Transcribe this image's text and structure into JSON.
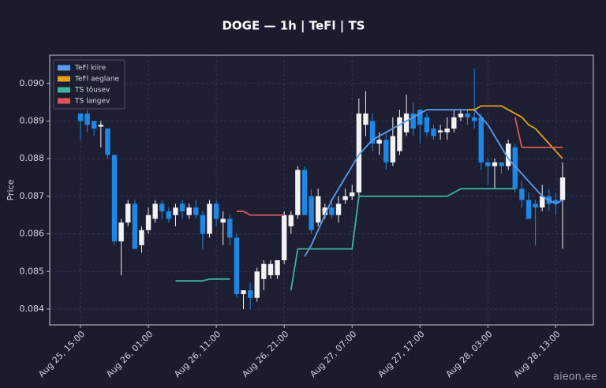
{
  "chart_data": {
    "type": "candlestick",
    "title": "DOGE — 1h  |  TeFl  |  TS",
    "y_label": "Price",
    "watermark": "aieon.ee",
    "x": [
      "Aug 25, 15:00",
      "Aug 25, 16:00",
      "Aug 25, 17:00",
      "Aug 25, 18:00",
      "Aug 25, 19:00",
      "Aug 25, 20:00",
      "Aug 25, 21:00",
      "Aug 25, 22:00",
      "Aug 25, 23:00",
      "Aug 26, 00:00",
      "Aug 26, 01:00",
      "Aug 26, 02:00",
      "Aug 26, 03:00",
      "Aug 26, 04:00",
      "Aug 26, 05:00",
      "Aug 26, 06:00",
      "Aug 26, 07:00",
      "Aug 26, 08:00",
      "Aug 26, 09:00",
      "Aug 26, 10:00",
      "Aug 26, 11:00",
      "Aug 26, 12:00",
      "Aug 26, 13:00",
      "Aug 26, 14:00",
      "Aug 26, 15:00",
      "Aug 26, 16:00",
      "Aug 26, 17:00",
      "Aug 26, 18:00",
      "Aug 26, 19:00",
      "Aug 26, 20:00",
      "Aug 26, 21:00",
      "Aug 26, 22:00",
      "Aug 26, 23:00",
      "Aug 27, 00:00",
      "Aug 27, 01:00",
      "Aug 27, 02:00",
      "Aug 27, 03:00",
      "Aug 27, 04:00",
      "Aug 27, 05:00",
      "Aug 27, 06:00",
      "Aug 27, 07:00",
      "Aug 27, 08:00",
      "Aug 27, 09:00",
      "Aug 27, 10:00",
      "Aug 27, 11:00",
      "Aug 27, 12:00",
      "Aug 27, 13:00",
      "Aug 27, 14:00",
      "Aug 27, 15:00",
      "Aug 27, 16:00",
      "Aug 27, 17:00",
      "Aug 27, 18:00",
      "Aug 27, 19:00",
      "Aug 27, 20:00",
      "Aug 27, 21:00",
      "Aug 27, 22:00",
      "Aug 27, 23:00",
      "Aug 28, 00:00",
      "Aug 28, 01:00",
      "Aug 28, 02:00",
      "Aug 28, 03:00",
      "Aug 28, 04:00",
      "Aug 28, 05:00",
      "Aug 28, 06:00",
      "Aug 28, 07:00",
      "Aug 28, 08:00",
      "Aug 28, 09:00",
      "Aug 28, 10:00",
      "Aug 28, 11:00",
      "Aug 28, 12:00",
      "Aug 28, 13:00",
      "Aug 28, 14:00"
    ],
    "open": [
      0.0892,
      0.0892,
      0.089,
      0.08885,
      0.0888,
      0.0881,
      0.0858,
      0.0863,
      0.0868,
      0.0857,
      0.0861,
      0.0864,
      0.0868,
      0.0866,
      0.0865,
      0.0868,
      0.0865,
      0.0867,
      0.0865,
      0.086,
      0.0868,
      0.0863,
      0.0864,
      0.0859,
      0.0844,
      0.0845,
      0.0843,
      0.0848,
      0.0849,
      0.0849,
      0.0853,
      0.0862,
      0.0865,
      0.0877,
      0.087,
      0.0863,
      0.0865,
      0.0867,
      0.0865,
      0.0869,
      0.087,
      0.0871,
      0.0889,
      0.089,
      0.0884,
      0.0885,
      0.0879,
      0.0882,
      0.0887,
      0.0892,
      0.0893,
      0.0891,
      0.0888,
      0.0887,
      0.0887,
      0.0888,
      0.0891,
      0.0892,
      0.0891,
      0.0891,
      0.0879,
      0.0878,
      0.0879,
      0.0878,
      0.0883,
      0.0872,
      0.0869,
      0.0868,
      0.0867,
      0.087,
      0.0869,
      0.0869
    ],
    "high": [
      0.0892,
      0.0893,
      0.089,
      0.089,
      0.0888,
      0.0881,
      0.0864,
      0.0869,
      0.0869,
      0.0862,
      0.0867,
      0.0869,
      0.0869,
      0.0867,
      0.0868,
      0.0869,
      0.0868,
      0.0869,
      0.0866,
      0.0869,
      0.0869,
      0.0866,
      0.0865,
      0.086,
      0.0845,
      0.0847,
      0.0851,
      0.0853,
      0.0853,
      0.0853,
      0.0866,
      0.0866,
      0.0878,
      0.0878,
      0.0872,
      0.0872,
      0.0868,
      0.0869,
      0.087,
      0.0872,
      0.0873,
      0.0896,
      0.0898,
      0.0892,
      0.0887,
      0.0887,
      0.0891,
      0.0893,
      0.0897,
      0.0895,
      0.0893,
      0.0892,
      0.0889,
      0.0889,
      0.0891,
      0.0893,
      0.0893,
      0.0893,
      0.0904,
      0.0892,
      0.088,
      0.088,
      0.0879,
      0.0885,
      0.0884,
      0.0874,
      0.0871,
      0.0869,
      0.0873,
      0.0872,
      0.0871,
      0.0879
    ],
    "low": [
      0.0885,
      0.0887,
      0.0886,
      0.0883,
      0.088,
      0.0857,
      0.0849,
      0.0862,
      0.0856,
      0.0855,
      0.086,
      0.0863,
      0.0864,
      0.0863,
      0.0862,
      0.0864,
      0.0864,
      0.0864,
      0.0856,
      0.0859,
      0.0862,
      0.0857,
      0.0857,
      0.0843,
      0.084,
      0.084,
      0.0842,
      0.0845,
      0.0848,
      0.0848,
      0.0852,
      0.086,
      0.0864,
      0.0865,
      0.086,
      0.0862,
      0.0864,
      0.0864,
      0.0863,
      0.0868,
      0.0869,
      0.087,
      0.0886,
      0.0882,
      0.0881,
      0.0877,
      0.0878,
      0.0881,
      0.0886,
      0.0886,
      0.0884,
      0.0886,
      0.0885,
      0.0885,
      0.0885,
      0.0887,
      0.089,
      0.0889,
      0.0888,
      0.0877,
      0.0873,
      0.0872,
      0.0876,
      0.0877,
      0.0871,
      0.0867,
      0.0864,
      0.0857,
      0.0866,
      0.0866,
      0.0865,
      0.0856
    ],
    "close": [
      0.089,
      0.0889,
      0.0888,
      0.0889,
      0.0881,
      0.0858,
      0.0863,
      0.0868,
      0.0856,
      0.0861,
      0.0865,
      0.0868,
      0.0866,
      0.0864,
      0.0867,
      0.0866,
      0.0867,
      0.0865,
      0.086,
      0.0868,
      0.0864,
      0.0864,
      0.0859,
      0.0844,
      0.0845,
      0.0843,
      0.085,
      0.0852,
      0.0852,
      0.0853,
      0.0865,
      0.0865,
      0.0877,
      0.0865,
      0.0861,
      0.087,
      0.0867,
      0.0865,
      0.0868,
      0.087,
      0.0871,
      0.0892,
      0.0892,
      0.0884,
      0.0885,
      0.0879,
      0.0886,
      0.0891,
      0.0892,
      0.0888,
      0.0889,
      0.0887,
      0.0886,
      0.08875,
      0.0888,
      0.0891,
      0.0892,
      0.0891,
      0.089,
      0.0879,
      0.0878,
      0.0879,
      0.0878,
      0.0884,
      0.0872,
      0.0869,
      0.0864,
      0.0867,
      0.087,
      0.0868,
      0.0868,
      0.0875
    ],
    "up_color": "#f2f2f2",
    "down_color": "#1e88e5",
    "series": [
      {
        "name": "TeFl kiire",
        "color": "#5b9cf0",
        "values": [
          null,
          null,
          null,
          null,
          null,
          null,
          null,
          null,
          null,
          null,
          null,
          null,
          null,
          null,
          null,
          null,
          null,
          null,
          null,
          null,
          null,
          null,
          null,
          null,
          null,
          null,
          null,
          null,
          null,
          null,
          null,
          null,
          null,
          0.0854,
          0.0857,
          0.0861,
          0.0865,
          0.0869,
          0.0872,
          0.0875,
          0.0878,
          0.0881,
          0.0883,
          0.0885,
          0.0886,
          0.0887,
          0.0888,
          0.0889,
          0.089,
          0.0891,
          0.0892,
          0.0893,
          0.0893,
          0.0893,
          0.0893,
          0.0893,
          0.0893,
          0.0893,
          0.0893,
          0.0891,
          0.0889,
          0.0886,
          0.0883,
          0.088,
          0.0878,
          0.0876,
          0.0874,
          0.0872,
          0.087,
          0.0869,
          0.0868,
          0.0869
        ]
      },
      {
        "name": "TeFl aeglane",
        "color": "#e3a21a",
        "values": [
          null,
          null,
          null,
          null,
          null,
          null,
          null,
          null,
          null,
          null,
          null,
          null,
          null,
          null,
          null,
          null,
          null,
          null,
          null,
          null,
          null,
          null,
          null,
          null,
          null,
          null,
          null,
          null,
          null,
          null,
          null,
          null,
          null,
          null,
          null,
          null,
          null,
          null,
          null,
          null,
          null,
          null,
          null,
          null,
          null,
          null,
          null,
          null,
          null,
          null,
          null,
          null,
          null,
          null,
          null,
          null,
          null,
          0.0893,
          0.0893,
          0.0894,
          0.0894,
          0.0894,
          0.0894,
          0.0893,
          0.0892,
          0.0891,
          0.0889,
          0.0888,
          0.0886,
          0.0884,
          0.0882,
          0.088
        ]
      },
      {
        "name": "TS tõusev",
        "color": "#3db39b",
        "values": [
          null,
          null,
          null,
          null,
          null,
          null,
          null,
          null,
          null,
          null,
          null,
          null,
          null,
          null,
          0.08475,
          0.08475,
          0.08475,
          0.08475,
          0.08475,
          0.0848,
          0.0848,
          0.0848,
          0.0848,
          null,
          null,
          null,
          null,
          null,
          null,
          null,
          null,
          0.0845,
          0.0856,
          0.0856,
          0.0856,
          0.0856,
          0.0856,
          0.0856,
          0.0856,
          0.0856,
          0.0856,
          0.087,
          0.087,
          0.087,
          0.087,
          0.087,
          0.087,
          0.087,
          0.087,
          0.087,
          0.087,
          0.087,
          0.087,
          0.087,
          0.087,
          0.0871,
          0.0872,
          0.0872,
          0.0872,
          0.0872,
          0.0872,
          0.0872,
          0.0872,
          0.0872,
          0.0872,
          null,
          null,
          null,
          null,
          null,
          null,
          null
        ]
      },
      {
        "name": "TS langev",
        "color": "#e05656",
        "values": [
          null,
          null,
          null,
          null,
          null,
          null,
          null,
          null,
          null,
          null,
          null,
          null,
          null,
          null,
          null,
          null,
          null,
          null,
          null,
          null,
          null,
          null,
          null,
          0.0866,
          0.0866,
          0.0865,
          0.0865,
          0.0865,
          0.0865,
          0.0865,
          0.0865,
          null,
          null,
          null,
          null,
          null,
          null,
          null,
          null,
          null,
          null,
          null,
          null,
          null,
          null,
          null,
          null,
          null,
          null,
          null,
          null,
          null,
          null,
          null,
          null,
          null,
          null,
          null,
          null,
          null,
          null,
          null,
          null,
          null,
          0.0891,
          0.0883,
          0.0883,
          0.0883,
          0.0883,
          0.0883,
          0.0883,
          0.0883
        ]
      }
    ],
    "ylim": [
      0.08358,
      0.09075
    ],
    "yticks": [
      0.084,
      0.085,
      0.086,
      0.087,
      0.088,
      0.089,
      {
        "value": 0.09,
        "label": "0.090"
      }
    ],
    "xticks": [
      "Aug 25, 15:00",
      "Aug 26, 01:00",
      "Aug 26, 11:00",
      "Aug 26, 21:00",
      "Aug 27, 07:00",
      "Aug 27, 17:00",
      "Aug 28, 03:00",
      "Aug 28, 13:00"
    ],
    "grid": true,
    "legend": "upper left"
  }
}
